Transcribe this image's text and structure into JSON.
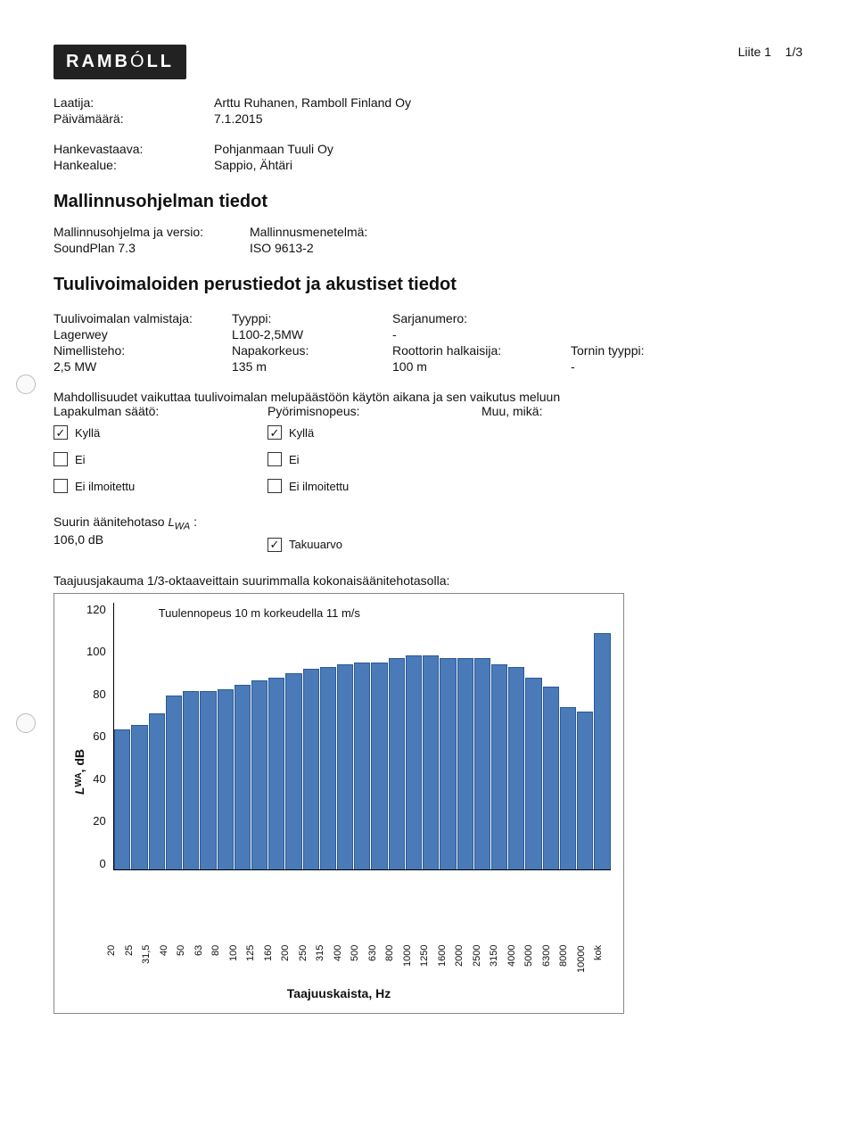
{
  "page_info": {
    "liite": "Liite 1",
    "page": "1/3"
  },
  "logo_text": "RAMBOLL",
  "header_fields": [
    {
      "label": "Laatija:",
      "value": "Arttu Ruhanen, Ramboll Finland Oy"
    },
    {
      "label": "Päivämäärä:",
      "value": "7.1.2015"
    }
  ],
  "header_fields2": [
    {
      "label": "Hankevastaava:",
      "value": "Pohjanmaan Tuuli Oy"
    },
    {
      "label": "Hankealue:",
      "value": "Sappio, Ähtäri"
    }
  ],
  "section1_title": "Mallinnusohjelman tiedot",
  "section1_fields": [
    {
      "label": "Mallinnusohjelma ja versio:",
      "value": "Mallinnusmenetelmä:"
    },
    {
      "label": "SoundPlan 7.3",
      "value": "ISO 9613-2"
    }
  ],
  "section2_title": "Tuulivoimaloiden perustiedot ja akustiset tiedot",
  "turbine_grid": {
    "r1": [
      "Tuulivoimalan valmistaja:",
      "Tyyppi:",
      "Sarjanumero:",
      ""
    ],
    "r2": [
      "Lagerwey",
      "L100-2,5MW",
      "-",
      ""
    ],
    "r3": [
      "Nimellisteho:",
      "Napakorkeus:",
      "Roottorin halkaisija:",
      "Tornin tyyppi:"
    ],
    "r4": [
      "2,5 MW",
      "135 m",
      "100 m",
      "-"
    ]
  },
  "possibilities_text": "Mahdollisuudet vaikuttaa tuulivoimalan melupäästöön käytön aikana ja sen vaikutus meluun",
  "col_headers": [
    "Lapakulman säätö:",
    "Pyörimisnopeus:",
    "Muu, mikä:"
  ],
  "options": [
    {
      "label": "Kyllä",
      "checked1": true,
      "checked2": true
    },
    {
      "label": "Ei",
      "checked1": false,
      "checked2": false
    },
    {
      "label": "Ei ilmoitettu",
      "checked1": false,
      "checked2": false
    }
  ],
  "lwa_label_prefix": "Suurin äänitehotaso ",
  "lwa_symbol": "L",
  "lwa_sub": "WA",
  "lwa_suffix": " :",
  "lwa_value": "106,0 dB",
  "takuu": {
    "checked": true,
    "label": "Takuuarvo"
  },
  "chart_title": "Taajuusjakauma 1/3-oktaaveittain suurimmalla kokonaisäänitehotasolla:",
  "chart": {
    "legend": "Tuulennopeus 10 m korkeudella 11 m/s",
    "y_label": "L_WA, dB",
    "x_label": "Taajuuskaista, Hz",
    "ymax": 120,
    "yticks": [
      "120",
      "100",
      "80",
      "60",
      "40",
      "20",
      "0"
    ],
    "categories": [
      "20",
      "25",
      "31,5",
      "40",
      "50",
      "63",
      "80",
      "100",
      "125",
      "160",
      "200",
      "250",
      "315",
      "400",
      "500",
      "630",
      "800",
      "1000",
      "1250",
      "1600",
      "2000",
      "2500",
      "3150",
      "4000",
      "5000",
      "6300",
      "8000",
      "10000",
      "kok"
    ],
    "values": [
      63,
      65,
      70,
      78,
      80,
      80,
      81,
      83,
      85,
      86,
      88,
      90,
      91,
      92,
      93,
      93,
      95,
      96,
      96,
      95,
      95,
      95,
      92,
      91,
      86,
      82,
      73,
      71,
      106
    ],
    "bar_color": "#4a7ab8",
    "bar_border": "#2a5a98"
  }
}
